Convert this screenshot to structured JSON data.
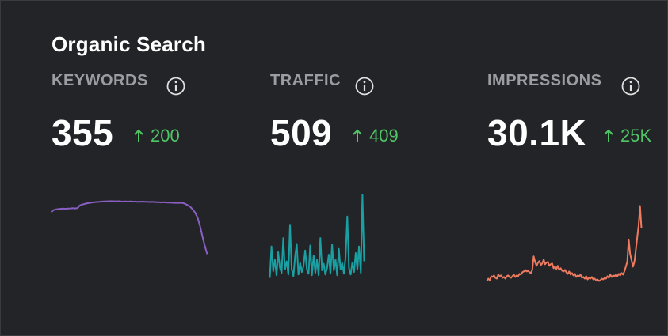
{
  "panel": {
    "title": "Organic Search"
  },
  "metrics": [
    {
      "label": "KEYWORDS",
      "value": "355",
      "delta": "200",
      "trend": "up",
      "color": "#8a5fc4"
    },
    {
      "label": "TRAFFIC",
      "value": "509",
      "delta": "409",
      "trend": "up",
      "color": "#1aa0a3"
    },
    {
      "label": "IMPRESSIONS",
      "value": "30.1K",
      "delta": "25K",
      "trend": "up",
      "color": "#ee7b60"
    }
  ],
  "colors": {
    "background": "#232427",
    "label": "#9b9da2",
    "positive": "#4fc566"
  },
  "icons": {
    "info": "info-circle-icon",
    "delta": "arrow-up-icon"
  },
  "chart_data": [
    {
      "type": "line",
      "series": [
        {
          "values": [
            225,
            235,
            238,
            240,
            241,
            242,
            241,
            242,
            243,
            244,
            243,
            245,
            258,
            262,
            265,
            268,
            270,
            272,
            273,
            274,
            275,
            276,
            277,
            277,
            278,
            278,
            278,
            277,
            278,
            277,
            276,
            277,
            276,
            277,
            276,
            276,
            275,
            275,
            276,
            275,
            275,
            274,
            275,
            274,
            273,
            273,
            272,
            273,
            272,
            271,
            271,
            270,
            270,
            270,
            270,
            269,
            264,
            258,
            250,
            238,
            222,
            198,
            158,
            108,
            60,
            20
          ]
        }
      ]
    },
    {
      "type": "line",
      "series": [
        {
          "values": [
            0,
            38,
            8,
            22,
            3,
            31,
            12,
            6,
            48,
            10,
            20,
            4,
            64,
            11,
            2,
            26,
            41,
            4,
            18,
            7,
            14,
            33,
            10,
            5,
            39,
            3,
            27,
            6,
            22,
            3,
            48,
            9,
            17,
            4,
            12,
            28,
            5,
            40,
            9,
            22,
            3,
            35,
            10,
            18,
            5,
            25,
            74,
            12,
            4,
            18,
            7,
            30,
            10,
            38,
            6,
            100,
            20
          ]
        }
      ]
    },
    {
      "type": "line",
      "series": [
        {
          "values": [
            6,
            9,
            7,
            12,
            11,
            13,
            10,
            9,
            14,
            12,
            13,
            10,
            11,
            9,
            12,
            13,
            11,
            10,
            12,
            14,
            11,
            13,
            12,
            15,
            14,
            17,
            18,
            20,
            18,
            19,
            17,
            16,
            20,
            37,
            30,
            25,
            29,
            31,
            26,
            28,
            33,
            27,
            29,
            30,
            25,
            27,
            28,
            22,
            24,
            21,
            25,
            20,
            22,
            19,
            18,
            20,
            17,
            15,
            18,
            14,
            16,
            13,
            15,
            11,
            13,
            12,
            14,
            10,
            11,
            9,
            12,
            8,
            10,
            9,
            11,
            8,
            9,
            7,
            8,
            6,
            7,
            9,
            8,
            10,
            9,
            12,
            10,
            14,
            11,
            13,
            12,
            14,
            12,
            15,
            13,
            16,
            14,
            18,
            24,
            30,
            58,
            40,
            32,
            24,
            30,
            44,
            60,
            75,
            100,
            72
          ]
        }
      ]
    }
  ]
}
